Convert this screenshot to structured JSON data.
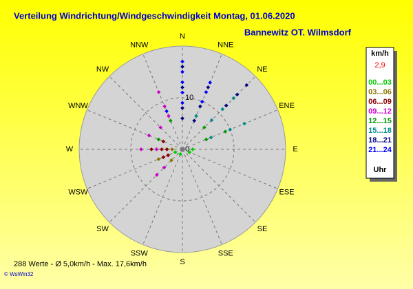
{
  "chart_data": {
    "type": "polar-scatter",
    "title": "Verteilung Windrichtung/Windgeschwindigkeit  Montag, 01.06.2020",
    "subtitle": "Bannewitz OT. Wilmsdorf",
    "footer": "288 Werte   -   Ø 5,0km/h  -  Max. 17,6km/h",
    "credit": "© WsWin32",
    "rlim": [
      0,
      20
    ],
    "rticks": [
      0,
      10
    ],
    "xticks": [
      {
        "value": 0,
        "label": "N"
      },
      {
        "value": 22.5,
        "label": "NNE"
      },
      {
        "value": 45,
        "label": "NE"
      },
      {
        "value": 67.5,
        "label": "ENE"
      },
      {
        "value": 90,
        "label": "E"
      },
      {
        "value": 112.5,
        "label": "ESE"
      },
      {
        "value": 135,
        "label": "SE"
      },
      {
        "value": 157.5,
        "label": "SSE"
      },
      {
        "value": 180,
        "label": "S"
      },
      {
        "value": 202.5,
        "label": "SSW"
      },
      {
        "value": 225,
        "label": "SW"
      },
      {
        "value": 247.5,
        "label": "WSW"
      },
      {
        "value": 270,
        "label": "W"
      },
      {
        "value": 292.5,
        "label": "WNW"
      },
      {
        "value": 315,
        "label": "NW"
      },
      {
        "value": 337.5,
        "label": "NNW"
      }
    ],
    "legend": {
      "unit": "km/h",
      "current": "2,9",
      "footer": "Uhr"
    },
    "series": [
      {
        "name": "00...03",
        "color": "#00cc00",
        "x": [
          90,
          112.5,
          202.5,
          247.5
        ],
        "values": [
          2,
          1.5,
          1,
          1.5
        ]
      },
      {
        "name": "03...06",
        "color": "#8b7500",
        "x": [
          270,
          270,
          225,
          247.5
        ],
        "values": [
          3,
          2,
          3,
          5
        ]
      },
      {
        "name": "06...09",
        "color": "#8b0000",
        "x": [
          270,
          270,
          270,
          247.5,
          247.5,
          292.5
        ],
        "values": [
          6,
          4,
          3,
          4,
          3,
          4
        ]
      },
      {
        "name": "09...12",
        "color": "#cc00cc",
        "x": [
          337.5,
          337.5,
          337.5,
          292.5,
          270,
          270,
          315,
          225,
          225
        ],
        "values": [
          12,
          9,
          7,
          7,
          8,
          5,
          6,
          7,
          5
        ]
      },
      {
        "name": "12...15",
        "color": "#009900",
        "x": [
          67.5,
          67.5,
          45,
          337.5,
          292.5
        ],
        "values": [
          9,
          5,
          6,
          6,
          5
        ]
      },
      {
        "name": "15...18",
        "color": "#008b8b",
        "x": [
          45,
          45,
          45,
          67.5,
          67.5,
          67.5,
          22.5
        ],
        "values": [
          14,
          11,
          8,
          13,
          10,
          6,
          7
        ]
      },
      {
        "name": "18...21",
        "color": "#000080",
        "x": [
          0,
          0,
          0,
          0,
          22.5,
          22.5,
          22.5,
          45,
          45,
          45
        ],
        "values": [
          16,
          12,
          8,
          6,
          13,
          9,
          6,
          17.6,
          15,
          12
        ]
      },
      {
        "name": "21...24",
        "color": "#0000ff",
        "x": [
          0,
          0,
          0,
          0,
          0,
          22.5,
          22.5,
          22.5,
          337.5
        ],
        "values": [
          17,
          15,
          13,
          11,
          9,
          14,
          12,
          10,
          8
        ]
      }
    ]
  }
}
